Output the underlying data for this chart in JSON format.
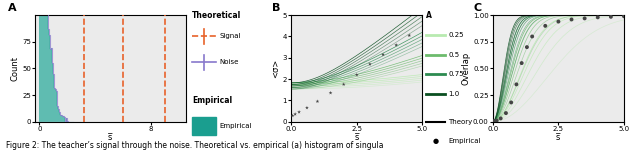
{
  "fig_width": 6.4,
  "fig_height": 1.52,
  "dpi": 100,
  "panel_A": {
    "label": "A",
    "hist_color": "#1a9e8f",
    "hist_edge_color": "#d0eeeb",
    "noise_color": "#8878cc",
    "signal_dashes": [
      3.2,
      6.0,
      9.0
    ],
    "signal_color": "#e8622a",
    "ylabel": "Count",
    "xlabel": "s̅",
    "xlim": [
      -0.3,
      10.5
    ],
    "ylim": [
      0,
      100
    ],
    "yticks": [
      0,
      25,
      50,
      75
    ],
    "xticks": [
      0,
      8
    ],
    "bg_color": "#ebebeb"
  },
  "panel_B": {
    "label": "B",
    "xlabel": "s̅",
    "ylabel": "<σ>",
    "xlim": [
      0.0,
      5.0
    ],
    "ylim": [
      0,
      5
    ],
    "yticks": [
      0,
      1,
      2,
      3,
      4,
      5
    ],
    "xticks": [
      0.0,
      2.5,
      5.0
    ],
    "bg_color": "#ebebeb",
    "A_values": [
      0.25,
      0.5,
      0.75,
      1.0
    ],
    "green_colors": [
      "#b8eab0",
      "#6dbb6d",
      "#2d8b50",
      "#0a4f20"
    ],
    "n_curves": 20,
    "emp_s": [
      0.05,
      0.15,
      0.3,
      0.6,
      1.0,
      1.5,
      2.0,
      2.5,
      3.0,
      3.5,
      4.0,
      4.5,
      5.0
    ],
    "emp_sigma": [
      0.28,
      0.35,
      0.45,
      0.65,
      0.95,
      1.35,
      1.75,
      2.2,
      2.7,
      3.15,
      3.6,
      4.05,
      5.1
    ]
  },
  "panel_C": {
    "label": "C",
    "xlabel": "s̅",
    "ylabel": "Overlap",
    "xlim": [
      0.0,
      5.0
    ],
    "ylim": [
      0.0,
      1.0
    ],
    "yticks": [
      0.0,
      0.25,
      0.5,
      0.75,
      1.0
    ],
    "xticks": [
      0.0,
      2.5,
      5.0
    ],
    "bg_color": "#ebebeb",
    "A_values": [
      0.25,
      0.5,
      0.75,
      1.0
    ],
    "green_colors": [
      "#b8eab0",
      "#6dbb6d",
      "#2d8b50",
      "#0a4f20"
    ],
    "emp_s": [
      0.05,
      0.15,
      0.3,
      0.5,
      0.7,
      0.9,
      1.1,
      1.3,
      1.5,
      2.0,
      2.5,
      3.0,
      3.5,
      4.0,
      4.5,
      5.0
    ],
    "emp_overlap": [
      0.005,
      0.01,
      0.03,
      0.08,
      0.18,
      0.35,
      0.55,
      0.7,
      0.8,
      0.9,
      0.94,
      0.96,
      0.97,
      0.98,
      0.985,
      0.99
    ]
  },
  "legend_signal_color": "#e8622a",
  "legend_noise_color": "#8878cc",
  "legend_empirical_color": "#1a9e8f",
  "caption": "Figure 2: The teacher’s signal through the noise. Theoretical vs. empirical (a) histogram of singula"
}
